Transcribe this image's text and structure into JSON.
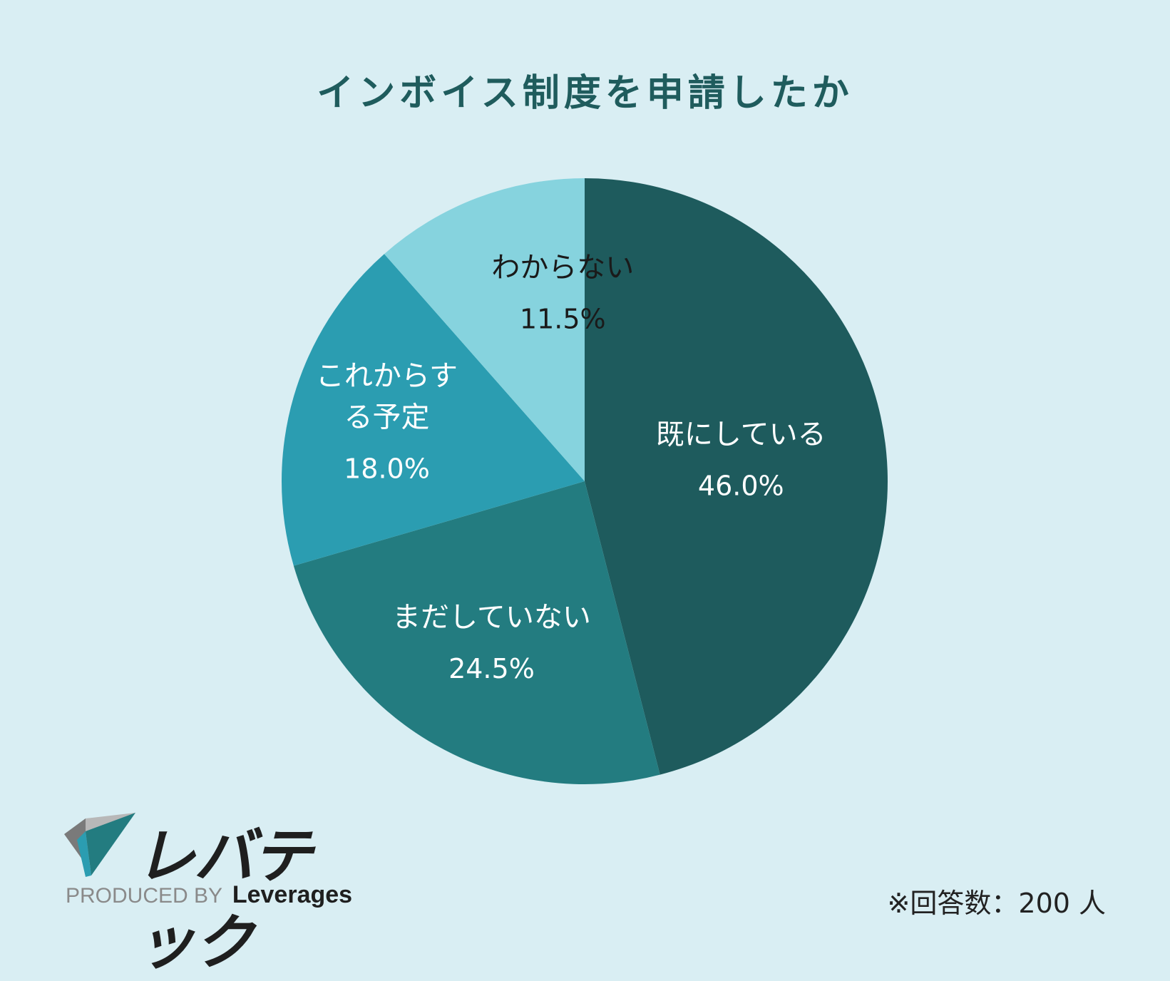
{
  "title": "インボイス制度を申請したか",
  "chart_data": {
    "type": "pie",
    "title": "インボイス制度を申請したか",
    "start_angle": "12 o'clock",
    "direction": "clockwise",
    "slices": [
      {
        "label": "既にしている",
        "value": 46.0,
        "value_label": "46.0%",
        "color": "#1e5b5d",
        "text_color": "#ffffff"
      },
      {
        "label": "まだしていない",
        "value": 24.5,
        "value_label": "24.5%",
        "color": "#237c80",
        "text_color": "#ffffff"
      },
      {
        "label": "これからする予定",
        "value": 18.0,
        "value_label": "18.0%",
        "color": "#2b9db1",
        "text_color": "#ffffff"
      },
      {
        "label": "わからない",
        "value": 11.5,
        "value_label": "11.5%",
        "color": "#86d3de",
        "text_color": "#1a1a1a"
      }
    ]
  },
  "logo": {
    "name": "レバテック",
    "produced_by": "PRODUCED BY",
    "brand": "Leverages"
  },
  "footnote": "※回答数：200 人"
}
